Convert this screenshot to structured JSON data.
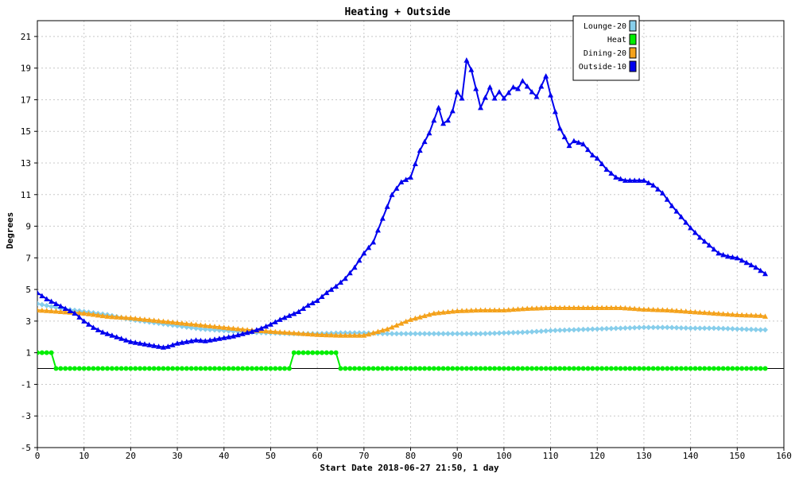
{
  "chart_data": {
    "type": "line",
    "title": "Heating + Outside",
    "xlabel": "Start Date 2018-06-27 21:50, 1 day",
    "ylabel": "Degrees",
    "xlim": [
      0,
      160
    ],
    "ylim": [
      -5,
      22
    ],
    "xticks": [
      0,
      10,
      20,
      30,
      40,
      50,
      60,
      70,
      80,
      90,
      100,
      110,
      120,
      130,
      140,
      150,
      160
    ],
    "yticks": [
      -5,
      -3,
      -1,
      1,
      3,
      5,
      7,
      9,
      11,
      13,
      15,
      17,
      19,
      21
    ],
    "grid": true,
    "legend_position": "top-right",
    "series": [
      {
        "name": "Lounge-20",
        "color": "#87ceeb",
        "marker": "diamond",
        "points": [
          [
            0,
            4.1
          ],
          [
            5,
            3.8
          ],
          [
            10,
            3.6
          ],
          [
            15,
            3.4
          ],
          [
            20,
            3.1
          ],
          [
            25,
            2.9
          ],
          [
            30,
            2.7
          ],
          [
            35,
            2.5
          ],
          [
            40,
            2.4
          ],
          [
            45,
            2.3
          ],
          [
            50,
            2.25
          ],
          [
            55,
            2.2
          ],
          [
            60,
            2.2
          ],
          [
            65,
            2.25
          ],
          [
            70,
            2.25
          ],
          [
            75,
            2.2
          ],
          [
            80,
            2.2
          ],
          [
            85,
            2.2
          ],
          [
            90,
            2.2
          ],
          [
            95,
            2.2
          ],
          [
            100,
            2.25
          ],
          [
            105,
            2.3
          ],
          [
            110,
            2.4
          ],
          [
            115,
            2.45
          ],
          [
            120,
            2.5
          ],
          [
            125,
            2.55
          ],
          [
            130,
            2.6
          ],
          [
            135,
            2.6
          ],
          [
            140,
            2.55
          ],
          [
            145,
            2.55
          ],
          [
            150,
            2.5
          ],
          [
            155,
            2.45
          ],
          [
            156,
            2.45
          ]
        ]
      },
      {
        "name": "Heat",
        "color": "#00ee00",
        "marker": "circle",
        "points": [
          [
            0,
            1
          ],
          [
            3,
            1
          ],
          [
            4,
            0
          ],
          [
            54,
            0
          ],
          [
            55,
            1
          ],
          [
            64,
            1
          ],
          [
            65,
            0
          ],
          [
            156,
            0
          ]
        ]
      },
      {
        "name": "Dining-20",
        "color": "#f4a21c",
        "marker": "triangle",
        "points": [
          [
            0,
            3.7
          ],
          [
            5,
            3.6
          ],
          [
            10,
            3.5
          ],
          [
            15,
            3.3
          ],
          [
            20,
            3.2
          ],
          [
            25,
            3.05
          ],
          [
            30,
            2.9
          ],
          [
            35,
            2.75
          ],
          [
            40,
            2.6
          ],
          [
            45,
            2.45
          ],
          [
            50,
            2.35
          ],
          [
            55,
            2.25
          ],
          [
            60,
            2.15
          ],
          [
            65,
            2.1
          ],
          [
            70,
            2.1
          ],
          [
            75,
            2.5
          ],
          [
            80,
            3.1
          ],
          [
            85,
            3.5
          ],
          [
            90,
            3.65
          ],
          [
            95,
            3.7
          ],
          [
            100,
            3.7
          ],
          [
            105,
            3.8
          ],
          [
            110,
            3.85
          ],
          [
            115,
            3.85
          ],
          [
            120,
            3.85
          ],
          [
            125,
            3.85
          ],
          [
            130,
            3.75
          ],
          [
            135,
            3.7
          ],
          [
            140,
            3.6
          ],
          [
            145,
            3.5
          ],
          [
            150,
            3.4
          ],
          [
            155,
            3.35
          ],
          [
            156,
            3.3
          ]
        ]
      },
      {
        "name": "Outside-10",
        "color": "#0000ee",
        "marker": "triangle",
        "points": [
          [
            0,
            4.8
          ],
          [
            2,
            4.4
          ],
          [
            4,
            4.1
          ],
          [
            6,
            3.8
          ],
          [
            8,
            3.5
          ],
          [
            10,
            3.0
          ],
          [
            12,
            2.6
          ],
          [
            14,
            2.3
          ],
          [
            16,
            2.1
          ],
          [
            18,
            1.9
          ],
          [
            20,
            1.7
          ],
          [
            22,
            1.6
          ],
          [
            24,
            1.5
          ],
          [
            26,
            1.4
          ],
          [
            27,
            1.35
          ],
          [
            28,
            1.4
          ],
          [
            30,
            1.6
          ],
          [
            32,
            1.7
          ],
          [
            34,
            1.8
          ],
          [
            36,
            1.75
          ],
          [
            38,
            1.85
          ],
          [
            40,
            1.95
          ],
          [
            42,
            2.05
          ],
          [
            44,
            2.2
          ],
          [
            46,
            2.35
          ],
          [
            48,
            2.55
          ],
          [
            50,
            2.8
          ],
          [
            52,
            3.1
          ],
          [
            54,
            3.35
          ],
          [
            56,
            3.6
          ],
          [
            58,
            4.0
          ],
          [
            60,
            4.3
          ],
          [
            62,
            4.8
          ],
          [
            64,
            5.2
          ],
          [
            66,
            5.7
          ],
          [
            68,
            6.4
          ],
          [
            70,
            7.3
          ],
          [
            72,
            8.0
          ],
          [
            74,
            9.5
          ],
          [
            76,
            11.0
          ],
          [
            78,
            11.8
          ],
          [
            80,
            12.1
          ],
          [
            82,
            13.8
          ],
          [
            84,
            14.9
          ],
          [
            86,
            16.5
          ],
          [
            87,
            15.5
          ],
          [
            88,
            15.7
          ],
          [
            89,
            16.3
          ],
          [
            90,
            17.5
          ],
          [
            91,
            17.1
          ],
          [
            92,
            19.5
          ],
          [
            93,
            18.9
          ],
          [
            95,
            16.5
          ],
          [
            97,
            17.8
          ],
          [
            98,
            17.1
          ],
          [
            99,
            17.5
          ],
          [
            100,
            17.1
          ],
          [
            102,
            17.8
          ],
          [
            103,
            17.7
          ],
          [
            104,
            18.2
          ],
          [
            106,
            17.5
          ],
          [
            107,
            17.2
          ],
          [
            109,
            18.5
          ],
          [
            110,
            17.3
          ],
          [
            112,
            15.2
          ],
          [
            114,
            14.1
          ],
          [
            115,
            14.4
          ],
          [
            117,
            14.2
          ],
          [
            119,
            13.5
          ],
          [
            120,
            13.3
          ],
          [
            122,
            12.6
          ],
          [
            124,
            12.1
          ],
          [
            126,
            11.9
          ],
          [
            128,
            11.9
          ],
          [
            130,
            11.9
          ],
          [
            132,
            11.6
          ],
          [
            134,
            11.1
          ],
          [
            136,
            10.3
          ],
          [
            138,
            9.6
          ],
          [
            140,
            8.9
          ],
          [
            142,
            8.3
          ],
          [
            144,
            7.8
          ],
          [
            146,
            7.3
          ],
          [
            148,
            7.1
          ],
          [
            150,
            7.0
          ],
          [
            152,
            6.7
          ],
          [
            154,
            6.4
          ],
          [
            156,
            6.0
          ]
        ]
      }
    ]
  }
}
